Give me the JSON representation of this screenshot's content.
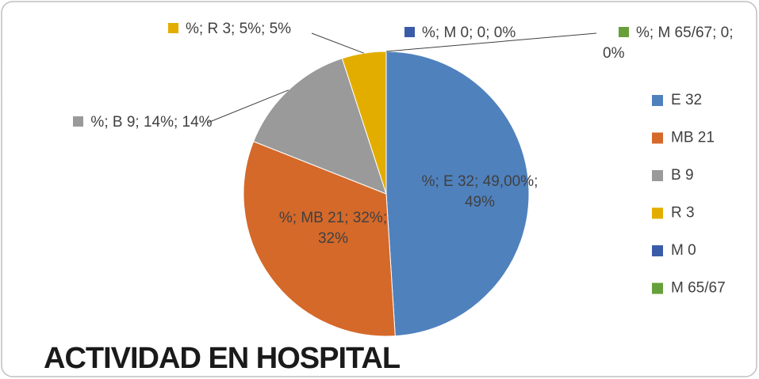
{
  "chart_data": {
    "type": "pie",
    "title": "ACTIVIDAD EN HOSPITAL",
    "categories": [
      "E 32",
      "MB 21",
      "B 9",
      "R 3",
      "M 0",
      "M 65/67"
    ],
    "values": [
      49,
      32,
      14,
      5,
      0,
      0
    ],
    "value_labels": [
      "%; E 32; 49,00%; 49%",
      "%; MB 21; 32%; 32%",
      "%; B 9; 14%; 14%",
      "%; R 3; 5%; 5%",
      "%; M 0; 0; 0%",
      "%; M 65/67; 0; 0%"
    ],
    "colors": [
      "#4f81bd",
      "#d4692a",
      "#9a9a9a",
      "#e3ad00",
      "#3b5ba8",
      "#67a03a"
    ],
    "legend": "right"
  }
}
